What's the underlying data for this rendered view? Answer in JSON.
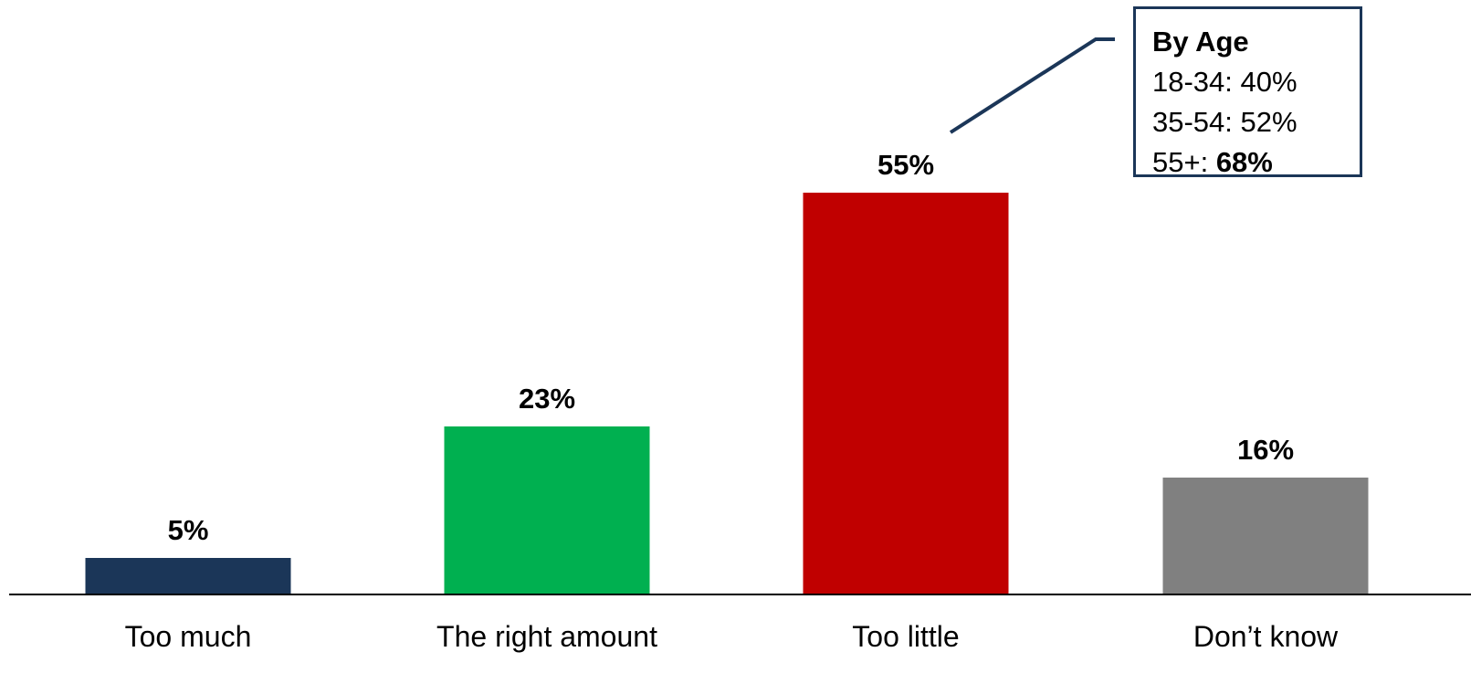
{
  "chart_data": {
    "type": "bar",
    "categories": [
      "Too much",
      "The right amount",
      "Too little",
      "Don’t know"
    ],
    "values": [
      5,
      23,
      55,
      16
    ],
    "value_labels": [
      "5%",
      "23%",
      "55%",
      "16%"
    ],
    "colors": [
      "#1b3658",
      "#00b050",
      "#c00000",
      "#808080"
    ],
    "ylim": [
      0,
      60
    ],
    "grid": false,
    "legend": "none",
    "annotation": {
      "title": "By Age",
      "rows": [
        {
          "label": "18-34: ",
          "value": "40%",
          "emphasis": false
        },
        {
          "label": "35-54: ",
          "value": "52%",
          "emphasis": false
        },
        {
          "label": "55+: ",
          "value": "68%",
          "emphasis": true
        }
      ],
      "points_to": "Too little",
      "border_color": "#1b3658"
    }
  }
}
